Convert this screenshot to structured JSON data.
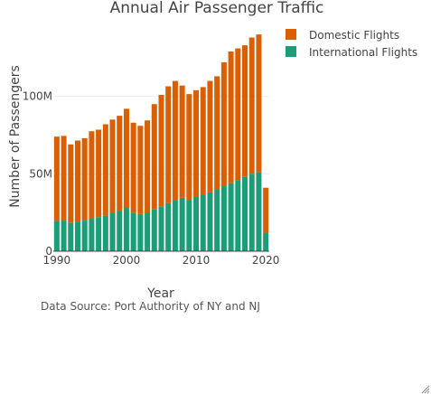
{
  "chart_data": {
    "type": "bar",
    "barmode": "stack",
    "title": "Annual Air Passenger Traffic",
    "xlabel": "Year",
    "ylabel": "Number of Passengers",
    "annotation": "Data Source: Port Authority of NY and NJ",
    "x": [
      1990,
      1991,
      1992,
      1993,
      1994,
      1995,
      1996,
      1997,
      1998,
      1999,
      2000,
      2001,
      2002,
      2003,
      2004,
      2005,
      2006,
      2007,
      2008,
      2009,
      2010,
      2011,
      2012,
      2013,
      2014,
      2015,
      2016,
      2017,
      2018,
      2019,
      2020
    ],
    "xticks": [
      1990,
      2000,
      2010,
      2020
    ],
    "xtick_labels": [
      "1990",
      "2000",
      "2010",
      "2020"
    ],
    "ylim": [
      0,
      150000000
    ],
    "yticks": [
      0,
      50000000,
      100000000
    ],
    "ytick_labels": [
      "0",
      "50M",
      "100M"
    ],
    "grid": true,
    "legend_position": "top-right",
    "series": [
      {
        "name": "International Flights",
        "color": "#1b9e77",
        "values": [
          19500000,
          19800000,
          18500000,
          19200000,
          19800000,
          21000000,
          22000000,
          23000000,
          24500000,
          26000000,
          28000000,
          25000000,
          24000000,
          24500000,
          27000000,
          29000000,
          31000000,
          33000000,
          34500000,
          33000000,
          35000000,
          36500000,
          38000000,
          40000000,
          42000000,
          44000000,
          46000000,
          48000000,
          50000000,
          51000000,
          12000000
        ]
      },
      {
        "name": "Domestic Flights",
        "color": "#d95f02",
        "values": [
          54500000,
          54700000,
          50500000,
          52300000,
          53200000,
          56500000,
          56500000,
          59000000,
          60500000,
          61500000,
          64000000,
          58000000,
          57000000,
          60000000,
          68000000,
          72000000,
          75500000,
          77000000,
          72500000,
          68500000,
          69000000,
          69500000,
          72000000,
          73000000,
          80000000,
          85000000,
          85000000,
          85000000,
          88000000,
          89000000,
          29000000
        ]
      }
    ],
    "legend_order": [
      "Domestic Flights",
      "International Flights"
    ]
  }
}
